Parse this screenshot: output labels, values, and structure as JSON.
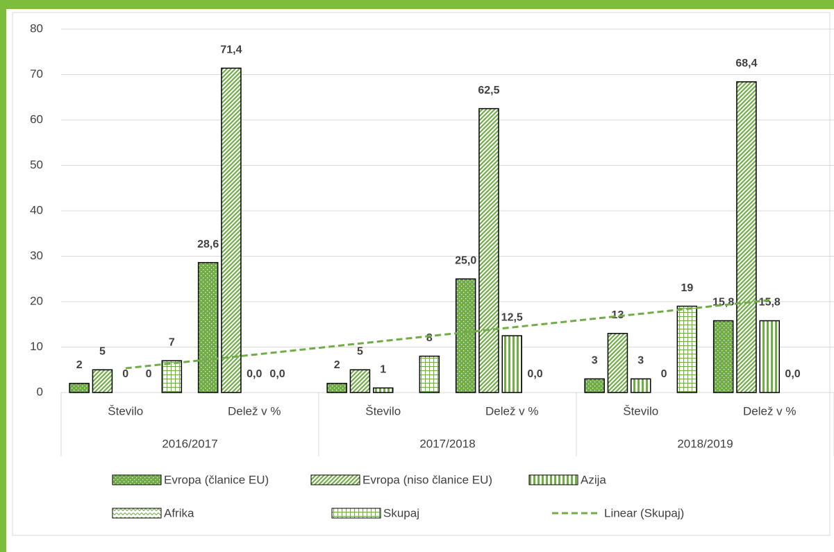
{
  "chart_data": {
    "type": "bar",
    "groups": [
      "2016/2017",
      "2017/2018",
      "2018/2019"
    ],
    "categories": [
      "Število",
      "Delež v %",
      "Število",
      "Delež v %",
      "Število",
      "Delež v %"
    ],
    "series": [
      {
        "name": "Evropa (članice EU)",
        "color": "#70ad47",
        "pattern": "dots",
        "values": [
          2,
          28.6,
          2,
          25.0,
          3,
          15.8
        ],
        "value_labels": [
          "2",
          "28,6",
          "2",
          "25,0",
          "3",
          "15,8"
        ]
      },
      {
        "name": "Evropa (niso članice EU)",
        "color": "#70ad47",
        "pattern": "diagonal",
        "values": [
          5,
          71.4,
          5,
          62.5,
          13,
          68.4
        ],
        "value_labels": [
          "5",
          "71,4",
          "5",
          "62,5",
          "13",
          "68,4"
        ]
      },
      {
        "name": "Azija",
        "color": "#70ad47",
        "pattern": "vertical",
        "values": [
          0,
          0.0,
          1,
          12.5,
          3,
          15.8
        ],
        "value_labels": [
          "0",
          "0,0",
          "1",
          "12,5",
          "3",
          "15,8"
        ]
      },
      {
        "name": "Afrika",
        "color": "#70ad47",
        "pattern": "zigzag",
        "values": [
          0,
          0.0,
          null,
          0.0,
          0,
          0.0
        ],
        "value_labels": [
          "0",
          "0,0",
          null,
          "0,0",
          "0",
          "0,0"
        ]
      },
      {
        "name": "Skupaj",
        "color": "#70ad47",
        "pattern": "grid",
        "values": [
          7,
          null,
          8,
          null,
          19,
          null
        ],
        "value_labels": [
          "7",
          null,
          "8",
          null,
          "19",
          null
        ]
      }
    ],
    "trendline": {
      "name": "Linear (Skupaj)",
      "color": "#70ad47",
      "dashed": true
    },
    "ylim": [
      0,
      80
    ],
    "yticks": [
      0,
      10,
      20,
      30,
      40,
      50,
      60,
      70,
      80
    ],
    "grid": true
  }
}
